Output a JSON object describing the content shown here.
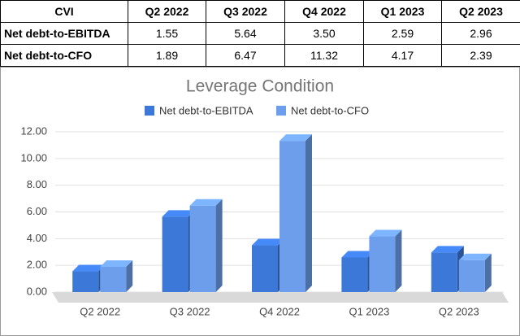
{
  "table": {
    "header": [
      "CVI",
      "Q2 2022",
      "Q3 2022",
      "Q4 2022",
      "Q1 2023",
      "Q2 2023"
    ],
    "rows": [
      [
        "Net debt-to-EBITDA",
        "1.55",
        "5.64",
        "3.50",
        "2.59",
        "2.96"
      ],
      [
        "Net debt-to-CFO",
        "1.89",
        "6.47",
        "11.32",
        "4.17",
        "2.39"
      ]
    ]
  },
  "chart_data": {
    "type": "bar3d",
    "title": "Leverage Condition",
    "categories": [
      "Q2 2022",
      "Q3 2022",
      "Q4 2022",
      "Q1 2023",
      "Q2 2023"
    ],
    "series": [
      {
        "name": "Net debt-to-EBITDA",
        "color": "#3c78d8",
        "values": [
          1.55,
          5.64,
          3.5,
          2.59,
          2.96
        ]
      },
      {
        "name": "Net debt-to-CFO",
        "color": "#6d9eeb",
        "values": [
          1.89,
          6.47,
          11.32,
          4.17,
          2.39
        ]
      }
    ],
    "ylim": [
      0,
      12
    ],
    "yticks": [
      {
        "value": 0,
        "label": "0.00"
      },
      {
        "value": 2,
        "label": "2.00"
      },
      {
        "value": 4,
        "label": "4.00"
      },
      {
        "value": 6,
        "label": "6.00"
      },
      {
        "value": 8,
        "label": "8.00"
      },
      {
        "value": 10,
        "label": "10.00"
      },
      {
        "value": 12,
        "label": "12.00"
      }
    ],
    "grid": true,
    "legend": "top"
  }
}
